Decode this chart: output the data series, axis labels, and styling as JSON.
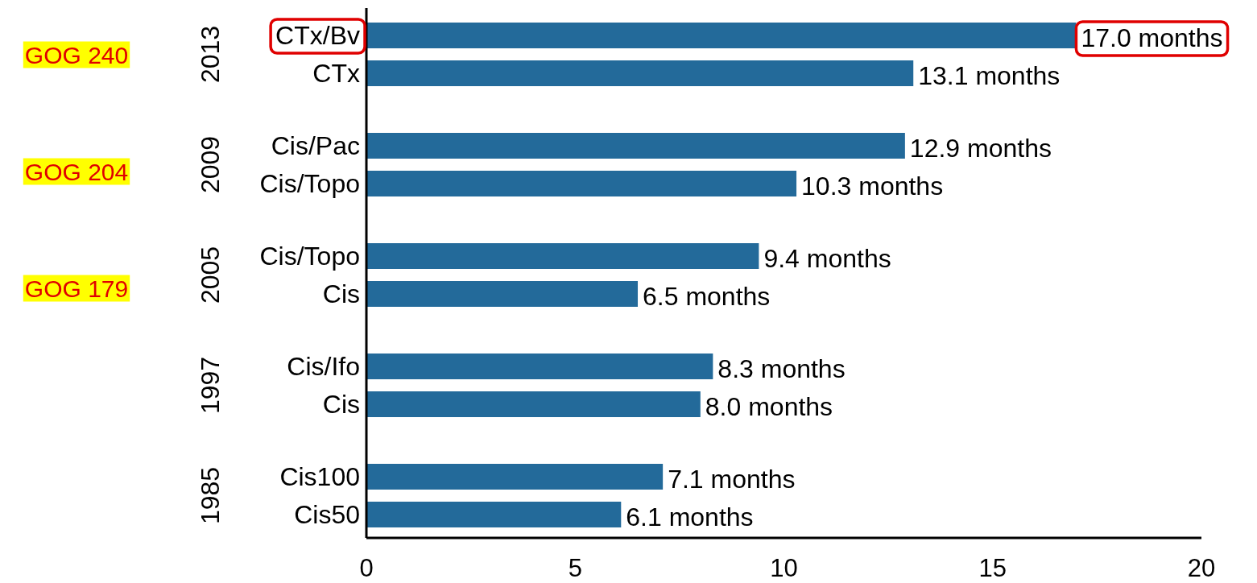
{
  "chart_data": {
    "type": "bar",
    "orientation": "horizontal",
    "categories": [
      "CTx/Bv",
      "CTx",
      "Cis/Pac",
      "Cis/Topo",
      "Cis/Topo",
      "Cis",
      "Cis/Ifo",
      "Cis",
      "Cis100",
      "Cis50"
    ],
    "values": [
      17.0,
      13.1,
      12.9,
      10.3,
      9.4,
      6.5,
      8.3,
      8.0,
      7.1,
      6.1
    ],
    "value_labels": [
      "17.0 months",
      "13.1 months",
      "12.9 months",
      "10.3 months",
      "9.4 months",
      "6.5 months",
      "8.3 months",
      "8.0 months",
      "7.1 months",
      "6.1 months"
    ],
    "color": "#236a9a",
    "xlim": [
      0,
      20
    ],
    "xticks": [
      0,
      5,
      10,
      15,
      20
    ],
    "annotations": [
      "2013",
      "2009",
      "2005",
      "1997",
      "1985",
      "GOG 240",
      "GOG 204",
      "GOG 179"
    ]
  }
}
